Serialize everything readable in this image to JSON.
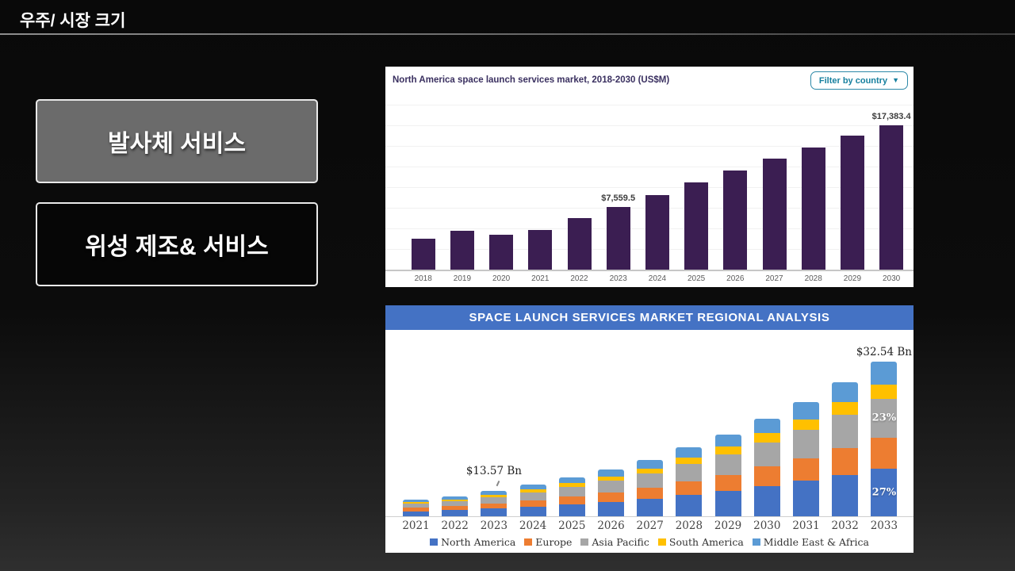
{
  "slide": {
    "title": "우주/ 시장 크기"
  },
  "buttons": [
    {
      "label": "발사체 서비스"
    },
    {
      "label": "위성 제조& 서비스"
    }
  ],
  "colors": {
    "slide_background": "#0c0c0c",
    "button_gray": "#6b6b6b",
    "button_black": "#060606",
    "purple_bar": "#3b1e52",
    "regional_header_blue": "#4472c4",
    "filter_teal": "#17809f"
  },
  "chart_data": [
    {
      "type": "bar",
      "title": "North America space launch services market, 2018-2030 (US$M)",
      "filter_button": "Filter by country",
      "categories": [
        "2018",
        "2019",
        "2020",
        "2021",
        "2022",
        "2023",
        "2024",
        "2025",
        "2026",
        "2027",
        "2028",
        "2029",
        "2030"
      ],
      "values": [
        3700,
        4650,
        4250,
        4800,
        6200,
        7559.5,
        9000,
        10550,
        11950,
        13350,
        14700,
        16100,
        17383.4
      ],
      "values_note": "2023 and 2030 are labeled on the chart; other values estimated from bar heights",
      "data_labels": [
        {
          "year": "2023",
          "text": "$7,559.5"
        },
        {
          "year": "2030",
          "text": "$17,383.4"
        }
      ],
      "bar_color": "#3b1e52",
      "ylabel": "US$M",
      "ylim": [
        0,
        18000
      ],
      "grid": true,
      "legend": false
    },
    {
      "type": "stacked-bar",
      "title": "SPACE LAUNCH SERVICES MARKET REGIONAL ANALYSIS",
      "categories": [
        "2021",
        "2022",
        "2023",
        "2024",
        "2025",
        "2026",
        "2027",
        "2028",
        "2029",
        "2030",
        "2031",
        "2032",
        "2033"
      ],
      "units": "relative visual height (chart is stylized, not drawn to numeric scale)",
      "series": [
        {
          "name": "North America",
          "color": "#4472c4",
          "values": [
            6.5,
            7.8,
            9.9,
            12.4,
            15.2,
            18.3,
            22.0,
            27.0,
            31.9,
            38.1,
            44.6,
            52.4,
            60.5
          ]
        },
        {
          "name": "Europe",
          "color": "#ed7d31",
          "values": [
            4.2,
            5.0,
            6.4,
            8.0,
            9.8,
            11.8,
            14.2,
            17.4,
            20.6,
            24.6,
            28.8,
            33.8,
            39.0
          ]
        },
        {
          "name": "Asia Pacific",
          "color": "#a6a6a6",
          "values": [
            5.3,
            6.3,
            8.0,
            10.0,
            12.3,
            14.8,
            17.8,
            21.8,
            25.8,
            30.8,
            36.0,
            42.3,
            48.8
          ]
        },
        {
          "name": "South America",
          "color": "#ffc000",
          "values": [
            1.9,
            2.3,
            2.9,
            3.6,
            4.4,
            5.3,
            6.4,
            7.8,
            9.3,
            11.1,
            13.0,
            15.2,
            17.6
          ]
        },
        {
          "name": "Middle East & Africa",
          "color": "#5b9bd5",
          "values": [
            3.2,
            3.8,
            4.8,
            6.0,
            7.4,
            8.9,
            10.7,
            13.1,
            15.5,
            18.5,
            21.6,
            25.4,
            29.3
          ]
        }
      ],
      "total_labels": [
        {
          "year": "2023",
          "text": "$13.57 Bn",
          "callout": true
        },
        {
          "year": "2033",
          "text": "$32.54 Bn"
        }
      ],
      "segment_labels": [
        {
          "year": "2033",
          "series": "Asia Pacific",
          "text": "23%"
        },
        {
          "year": "2033",
          "series": "North America",
          "text": "27%"
        }
      ],
      "legend_position": "bottom"
    }
  ]
}
